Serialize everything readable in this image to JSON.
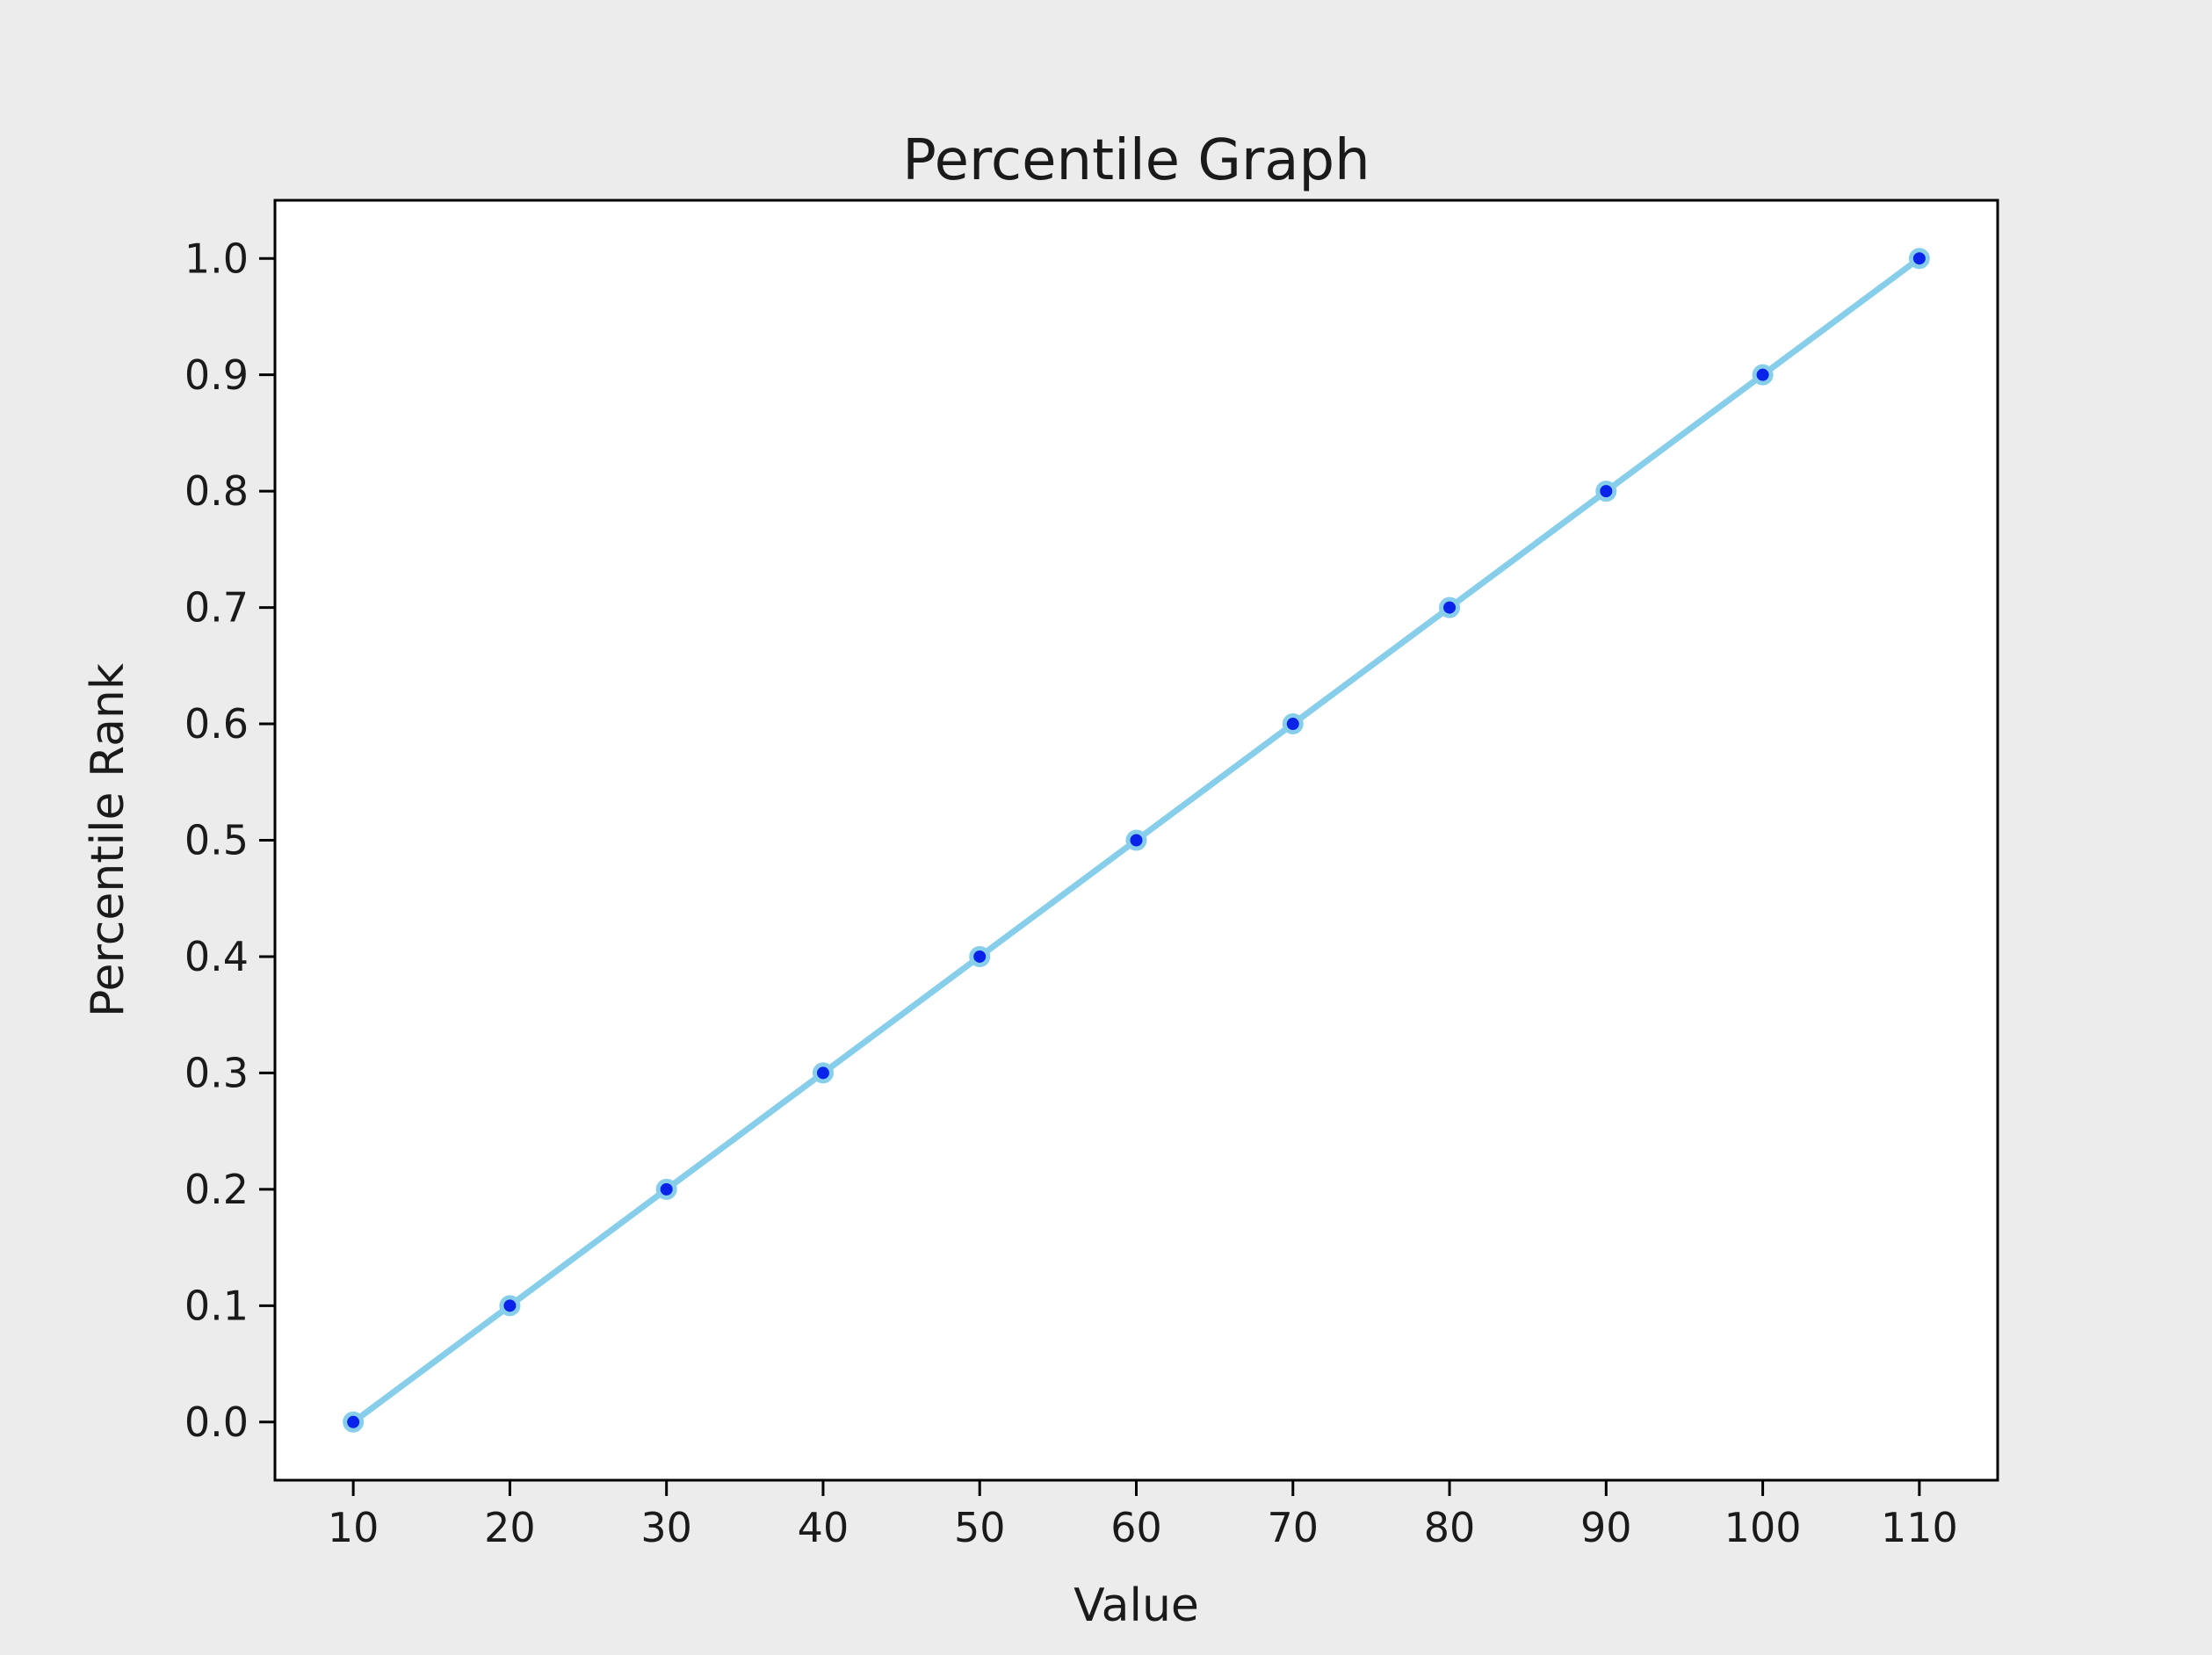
{
  "figure": {
    "background_color": "#ececec",
    "axes_background_color": "#ffffff",
    "spine_color": "#000000",
    "text_color": "#1a1a1a"
  },
  "chart_data": {
    "type": "line",
    "title": "Percentile Graph",
    "xlabel": "Value",
    "ylabel": "Percentile Rank",
    "x": [
      10,
      20,
      30,
      40,
      50,
      60,
      70,
      80,
      90,
      100,
      110
    ],
    "y": [
      0.0,
      0.1,
      0.2,
      0.3,
      0.4,
      0.5,
      0.6,
      0.7,
      0.8,
      0.9,
      1.0
    ],
    "x_tick_labels": [
      "10",
      "20",
      "30",
      "40",
      "50",
      "60",
      "70",
      "80",
      "90",
      "100",
      "110"
    ],
    "y_tick_labels": [
      "0.0",
      "0.1",
      "0.2",
      "0.3",
      "0.4",
      "0.5",
      "0.6",
      "0.7",
      "0.8",
      "0.9",
      "1.0"
    ],
    "xlim": [
      5,
      115
    ],
    "ylim": [
      -0.05,
      1.05
    ],
    "grid": false,
    "legend": null,
    "line_color": "#87ceeb",
    "marker_color": "#0a23e8",
    "marker_edge_color": "#87ceeb"
  }
}
